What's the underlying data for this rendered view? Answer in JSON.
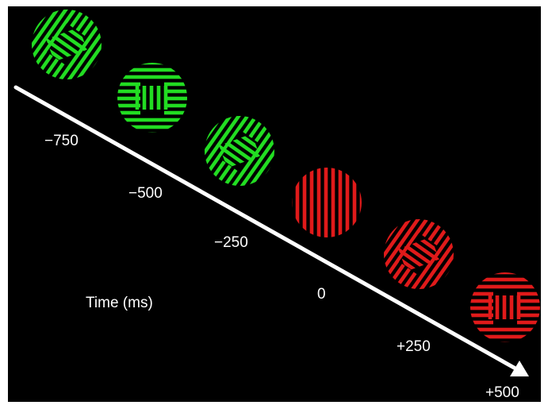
{
  "axis_title": "Time (ms)",
  "colors": {
    "background": "#000000",
    "arrow": "#ffffff",
    "green": "#22dd22",
    "red": "#e01a1a",
    "text": "#ffffff"
  },
  "ticks": [
    "−750",
    "−500",
    "−250",
    "0",
    "+250",
    "+500"
  ],
  "stimuli": [
    {
      "time_ms": -750,
      "color": "green",
      "pattern": "diagonal-grating-with-inset"
    },
    {
      "time_ms": -500,
      "color": "green",
      "pattern": "horizontal-grating-with-inset"
    },
    {
      "time_ms": -250,
      "color": "green",
      "pattern": "diagonal-grating-with-inset"
    },
    {
      "time_ms": 0,
      "color": "red",
      "pattern": "vertical-grating"
    },
    {
      "time_ms": 250,
      "color": "red",
      "pattern": "diagonal-grating-with-inset"
    },
    {
      "time_ms": 500,
      "color": "red",
      "pattern": "horizontal-grating-with-inset"
    }
  ]
}
